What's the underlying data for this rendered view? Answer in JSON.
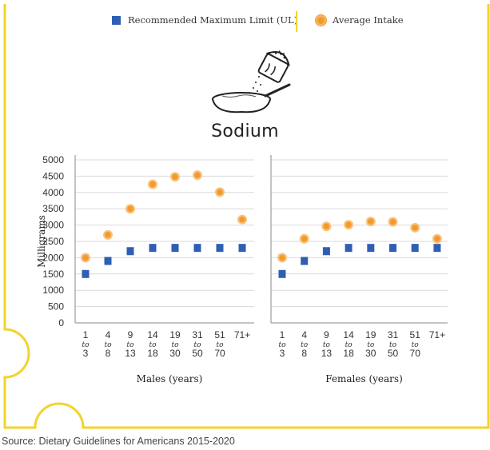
{
  "legend": {
    "ul_label": "Recommended Maximum Limit (UL)",
    "avg_label": "Average Intake"
  },
  "title": "Sodium",
  "source": "Source: Dietary Guidelines for Americans 2015-2020",
  "colors": {
    "ul": "#2f5fb3",
    "avg": "#f29a2e",
    "avg_ring": "#f8c27f",
    "frame": "#f2d32b",
    "grid": "#d9d9d9"
  },
  "icon": "salt-shaker-bowl-icon",
  "chart_data": {
    "type": "scatter",
    "ylabel": "Milligrams",
    "ylim": [
      0,
      5000
    ],
    "yticks": [
      0,
      500,
      1000,
      1500,
      2000,
      2500,
      3000,
      3500,
      4000,
      4500,
      5000
    ],
    "categories": [
      {
        "top": "1",
        "mid": "to",
        "bot": "3"
      },
      {
        "top": "4",
        "mid": "to",
        "bot": "8"
      },
      {
        "top": "9",
        "mid": "to",
        "bot": "13"
      },
      {
        "top": "14",
        "mid": "to",
        "bot": "18"
      },
      {
        "top": "19",
        "mid": "to",
        "bot": "30"
      },
      {
        "top": "31",
        "mid": "to",
        "bot": "50"
      },
      {
        "top": "51",
        "mid": "to",
        "bot": "70"
      },
      {
        "top": "71+",
        "mid": "",
        "bot": ""
      }
    ],
    "panels": [
      {
        "name": "males",
        "xlabel": "Males (years)",
        "series": [
          {
            "name": "Recommended Maximum Limit (UL)",
            "values": [
              1500,
              1900,
              2200,
              2300,
              2300,
              2300,
              2300,
              2300
            ]
          },
          {
            "name": "Average Intake",
            "values": [
              2000,
              2700,
              3500,
              4250,
              4480,
              4530,
              4010,
              3170
            ]
          }
        ]
      },
      {
        "name": "females",
        "xlabel": "Females (years)",
        "series": [
          {
            "name": "Recommended Maximum Limit (UL)",
            "values": [
              1500,
              1900,
              2200,
              2300,
              2300,
              2300,
              2300,
              2300
            ]
          },
          {
            "name": "Average Intake",
            "values": [
              2000,
              2580,
              2960,
              3010,
              3110,
              3100,
              2920,
              2580
            ]
          }
        ]
      }
    ]
  }
}
